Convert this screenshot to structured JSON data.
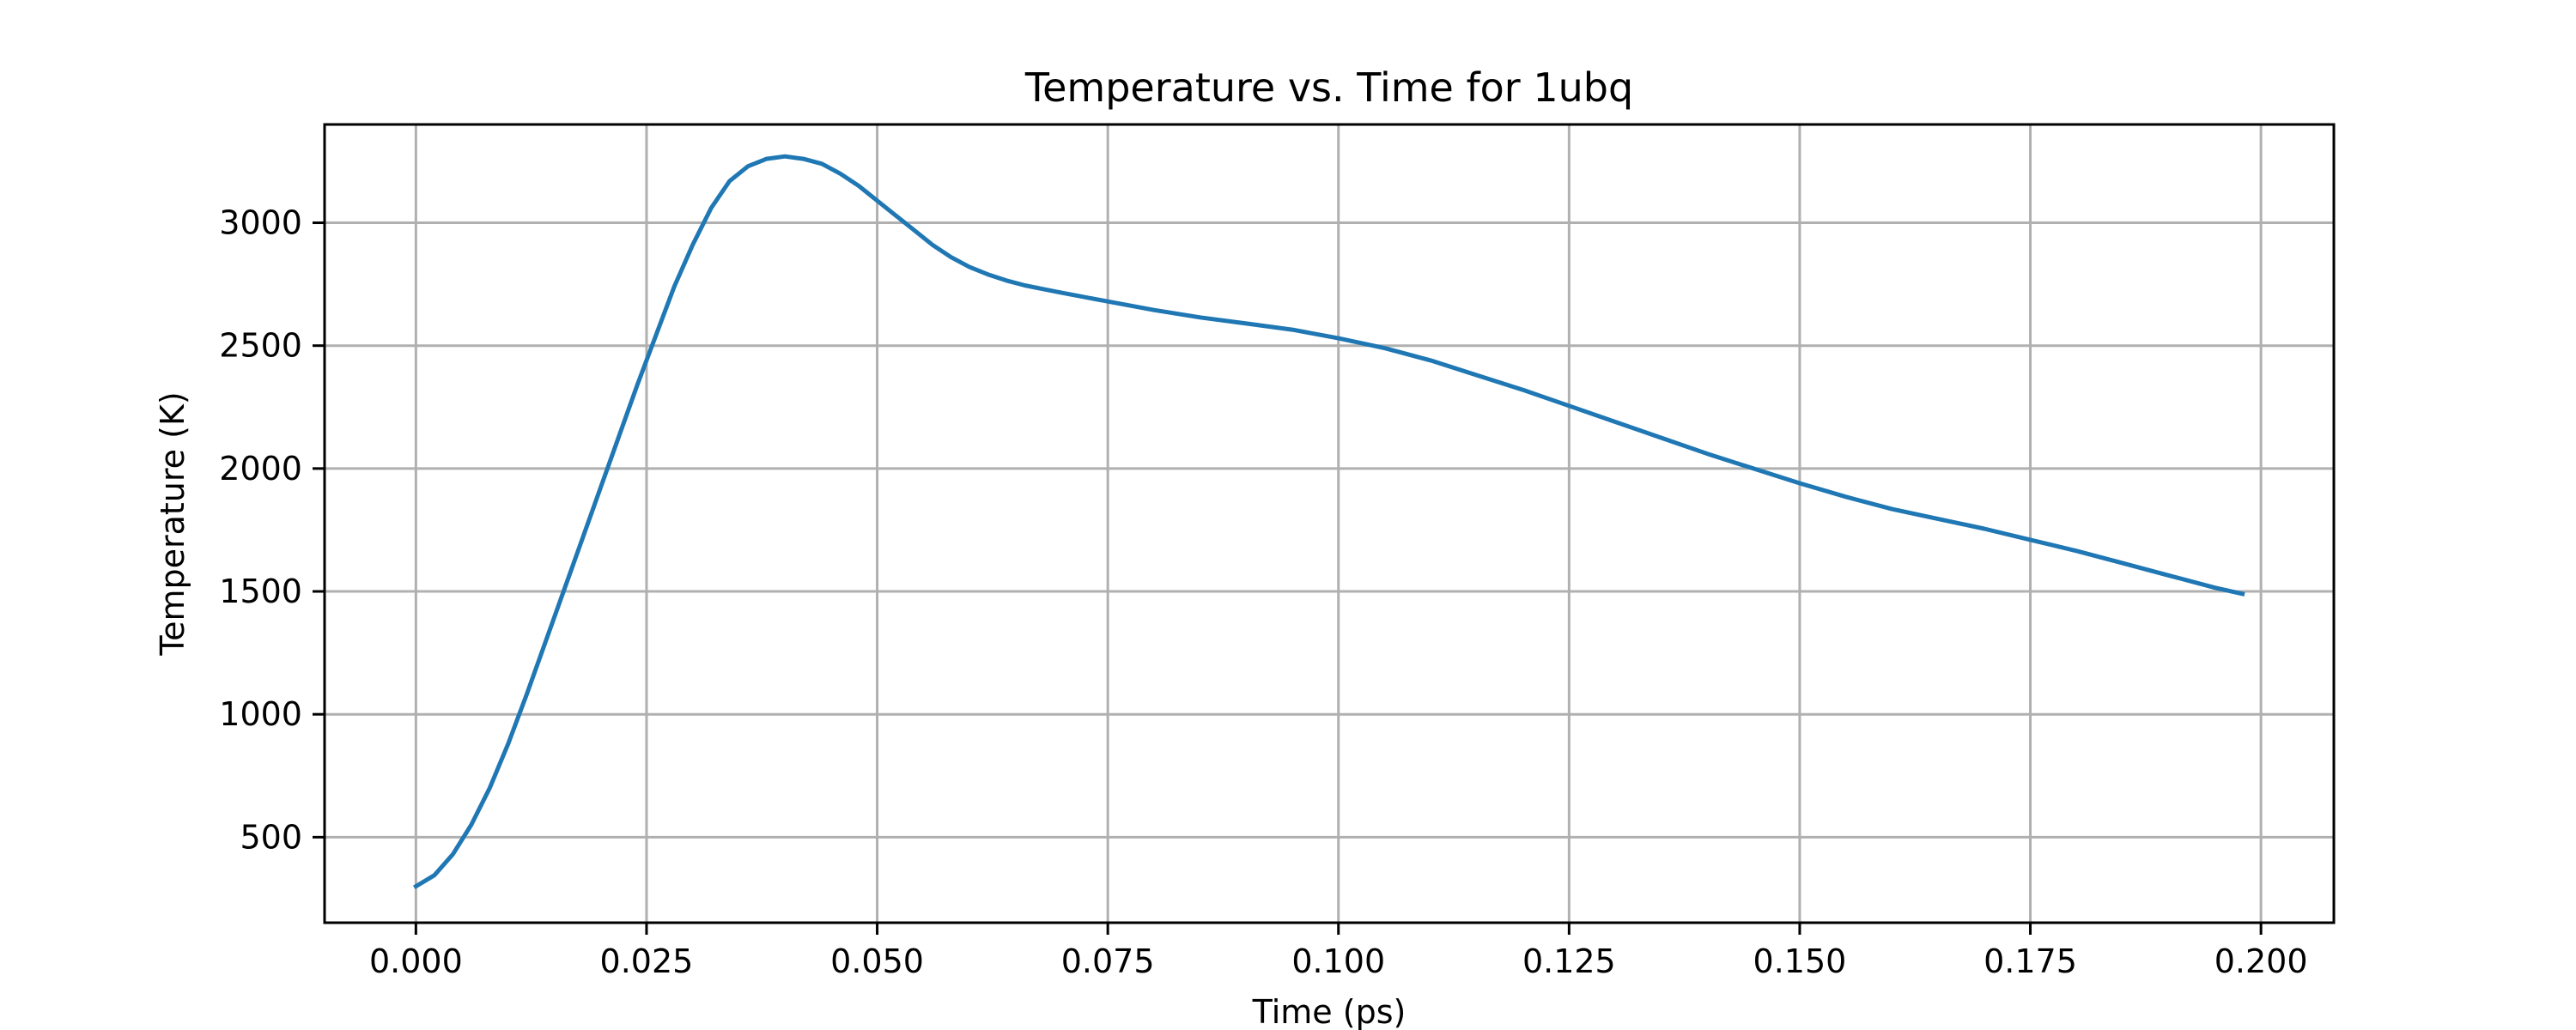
{
  "chart_data": {
    "type": "line",
    "title": "Temperature vs. Time for 1ubq",
    "xlabel": "Time (ps)",
    "ylabel": "Temperature (K)",
    "xlim": [
      -0.0099,
      0.2079
    ],
    "ylim": [
      152,
      3400
    ],
    "grid": true,
    "x_ticks": [
      0.0,
      0.025,
      0.05,
      0.075,
      0.1,
      0.125,
      0.15,
      0.175,
      0.2
    ],
    "x_tick_labels": [
      "0.000",
      "0.025",
      "0.050",
      "0.075",
      "0.100",
      "0.125",
      "0.150",
      "0.175",
      "0.200"
    ],
    "y_ticks": [
      500,
      1000,
      1500,
      2000,
      2500,
      3000
    ],
    "y_tick_labels": [
      "500",
      "1000",
      "1500",
      "2000",
      "2500",
      "3000"
    ],
    "series": [
      {
        "color": "#1f77b4",
        "x": [
          0.0,
          0.002,
          0.004,
          0.006,
          0.008,
          0.01,
          0.012,
          0.014,
          0.016,
          0.018,
          0.02,
          0.022,
          0.024,
          0.026,
          0.028,
          0.03,
          0.032,
          0.034,
          0.036,
          0.038,
          0.04,
          0.042,
          0.044,
          0.046,
          0.048,
          0.05,
          0.052,
          0.054,
          0.056,
          0.058,
          0.06,
          0.062,
          0.064,
          0.066,
          0.068,
          0.07,
          0.075,
          0.08,
          0.085,
          0.09,
          0.095,
          0.1,
          0.105,
          0.11,
          0.115,
          0.12,
          0.125,
          0.13,
          0.135,
          0.14,
          0.145,
          0.15,
          0.155,
          0.16,
          0.165,
          0.17,
          0.175,
          0.18,
          0.185,
          0.19,
          0.195,
          0.198
        ],
        "y": [
          300,
          345,
          430,
          550,
          700,
          880,
          1080,
          1290,
          1500,
          1710,
          1920,
          2130,
          2340,
          2540,
          2740,
          2910,
          3060,
          3170,
          3230,
          3260,
          3270,
          3260,
          3240,
          3200,
          3150,
          3090,
          3030,
          2970,
          2910,
          2860,
          2820,
          2790,
          2765,
          2745,
          2730,
          2715,
          2680,
          2645,
          2615,
          2590,
          2565,
          2530,
          2490,
          2440,
          2380,
          2320,
          2255,
          2190,
          2125,
          2060,
          2000,
          1940,
          1885,
          1835,
          1795,
          1755,
          1710,
          1665,
          1615,
          1565,
          1515,
          1490
        ]
      }
    ]
  }
}
